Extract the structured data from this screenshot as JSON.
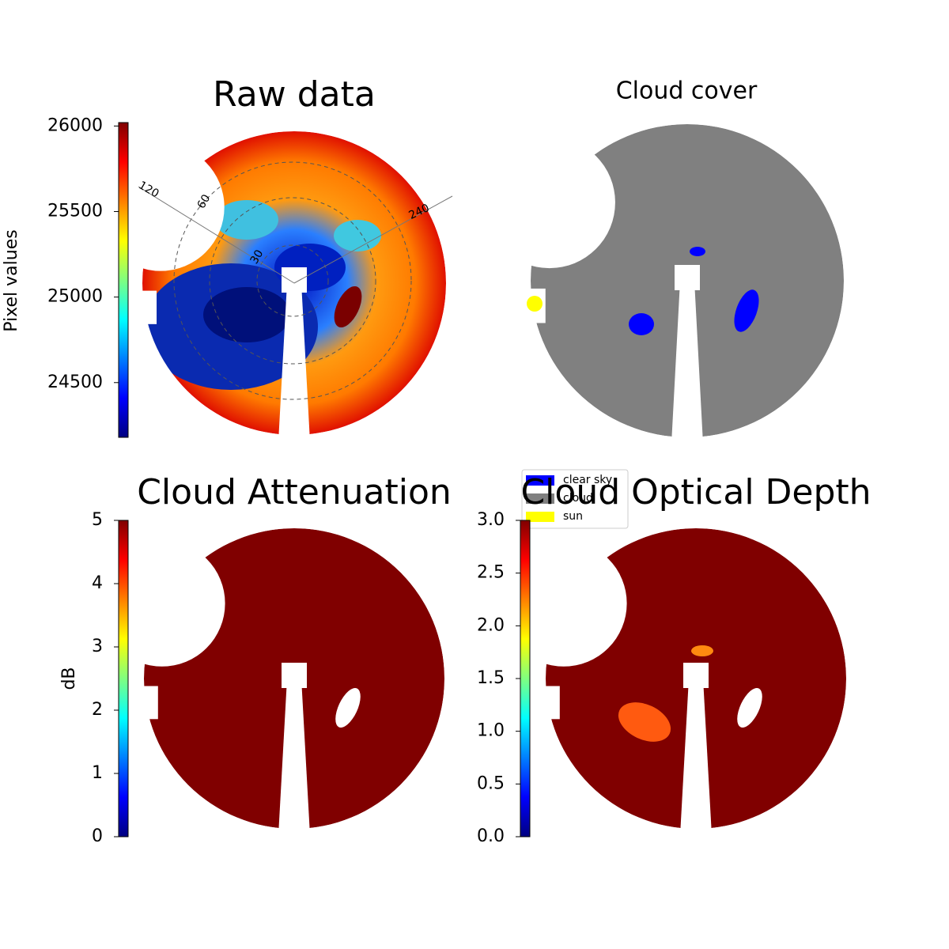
{
  "chart_data": [
    {
      "type": "image",
      "title": "Raw data",
      "colormap": "jet",
      "colorbar": {
        "label": "Pixel values",
        "lim": [
          24180,
          26020
        ],
        "ticks": [
          24500,
          25000,
          25500,
          26000
        ]
      },
      "annotations": [
        "120",
        "60",
        "240",
        "30"
      ]
    },
    {
      "type": "image",
      "title": "Cloud cover",
      "legend": {
        "series": [
          {
            "name": "clear sky",
            "color": "#0000ff"
          },
          {
            "name": "cloud",
            "color": "#808080"
          },
          {
            "name": "sun",
            "color": "#ffff00"
          }
        ]
      }
    },
    {
      "type": "image",
      "title": "Cloud Attenuation",
      "colormap": "jet",
      "colorbar": {
        "label": "dB",
        "lim": [
          0,
          5
        ],
        "ticks": [
          0,
          1,
          2,
          3,
          4,
          5
        ]
      }
    },
    {
      "type": "image",
      "title": "Cloud Optical Depth",
      "colormap": "jet",
      "colorbar": {
        "lim": [
          0,
          3
        ],
        "ticks": [
          {
            "value": 0,
            "label": "0.0"
          },
          {
            "value": 0.5,
            "label": "0.5"
          },
          {
            "value": 1,
            "label": "1.0"
          },
          {
            "value": 1.5,
            "label": "1.5"
          },
          {
            "value": 2,
            "label": "2.0"
          },
          {
            "value": 2.5,
            "label": "2.5"
          },
          {
            "value": 3,
            "label": "3.0"
          }
        ]
      }
    }
  ]
}
